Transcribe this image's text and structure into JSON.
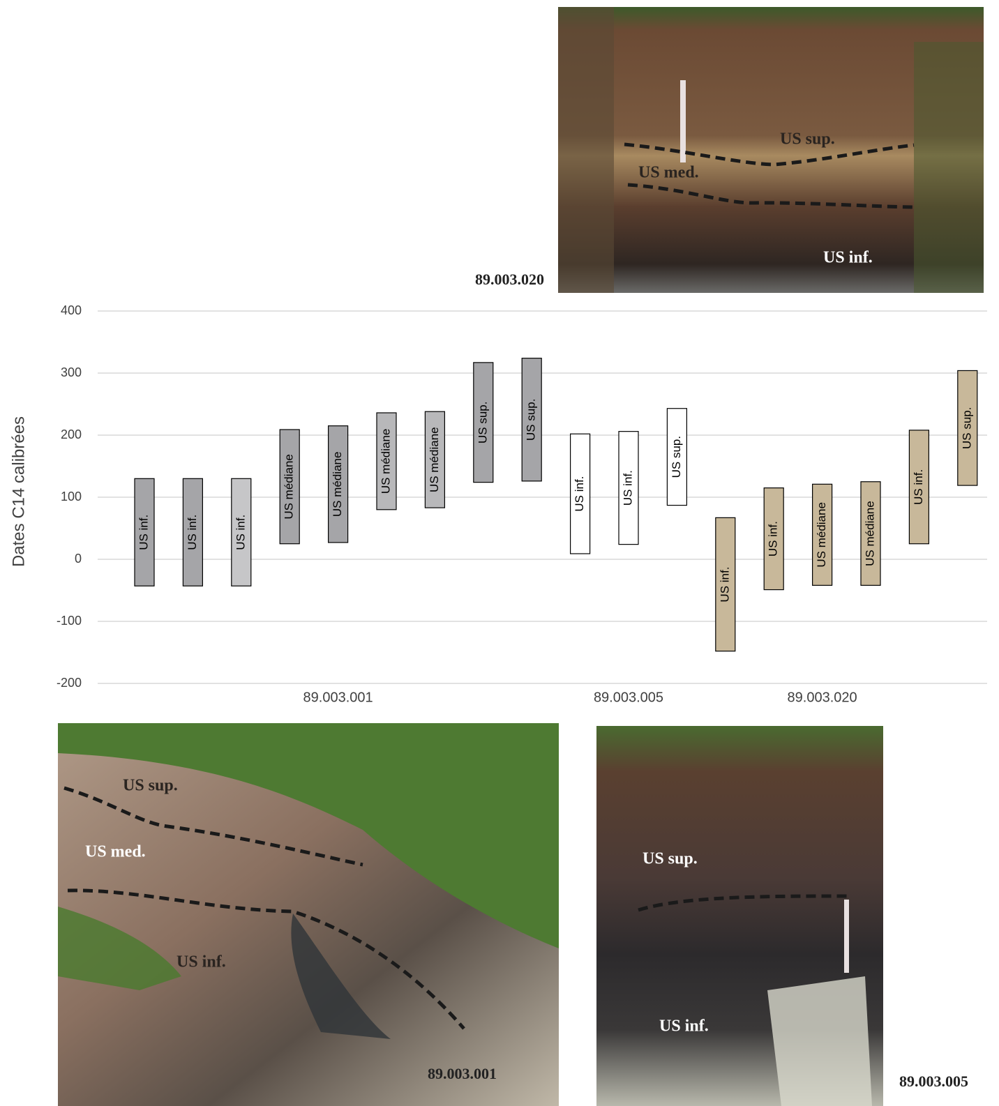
{
  "chart_data": {
    "type": "floating-bar",
    "y_label": "Dates C14 calibrées",
    "ylim": [
      -200,
      400
    ],
    "yticks": [
      -200,
      -100,
      0,
      100,
      200,
      300,
      400
    ],
    "grid": true,
    "categories": [
      null,
      null,
      null,
      null,
      "89.003.001",
      null,
      null,
      null,
      null,
      null,
      "89.003.005",
      null,
      null,
      null,
      "89.003.020",
      null,
      null,
      null
    ],
    "bars": [
      {
        "low": -43,
        "high": 130,
        "label": "US inf.",
        "color": "#a5a5a8"
      },
      {
        "low": -43,
        "high": 130,
        "label": "US inf.",
        "color": "#a5a5a8"
      },
      {
        "low": -43,
        "high": 130,
        "label": "US inf.",
        "color": "#c6c6c8"
      },
      {
        "low": 25,
        "high": 209,
        "label": "US médiane",
        "color": "#a5a5a8"
      },
      {
        "low": 27,
        "high": 215,
        "label": "US médiane",
        "color": "#a5a5a8"
      },
      {
        "low": 80,
        "high": 236,
        "label": "US médiane",
        "color": "#b8b8ba"
      },
      {
        "low": 83,
        "high": 238,
        "label": "US médiane",
        "color": "#b8b8ba"
      },
      {
        "low": 124,
        "high": 317,
        "label": "US sup.",
        "color": "#a5a5a8"
      },
      {
        "low": 126,
        "high": 324,
        "label": "US sup.",
        "color": "#a5a5a8"
      },
      {
        "low": 9,
        "high": 202,
        "label": "US inf.",
        "color": "#ffffff"
      },
      {
        "low": 24,
        "high": 206,
        "label": "US inf.",
        "color": "#ffffff"
      },
      {
        "low": 87,
        "high": 243,
        "label": "US sup.",
        "color": "#ffffff"
      },
      {
        "low": -148,
        "high": 67,
        "label": "US inf.",
        "color": "#c8b89a"
      },
      {
        "low": -49,
        "high": 115,
        "label": "US inf.",
        "color": "#c8b89a"
      },
      {
        "low": -42,
        "high": 121,
        "label": "US médiane",
        "color": "#c8b89a"
      },
      {
        "low": -42,
        "high": 125,
        "label": "US médiane",
        "color": "#c8b89a"
      },
      {
        "low": 25,
        "high": 208,
        "label": "US inf.",
        "color": "#c8b89a"
      },
      {
        "low": 119,
        "high": 304,
        "label": "US sup.",
        "color": "#c8b89a"
      }
    ]
  },
  "photos": [
    {
      "caption": "89.003.020",
      "labels": [
        "US sup.",
        "US med.",
        "US inf."
      ]
    },
    {
      "caption": "89.003.001",
      "labels": [
        "US sup.",
        "US med.",
        "US inf."
      ]
    },
    {
      "caption": "89.003.005",
      "labels": [
        "US sup.",
        "US inf."
      ]
    }
  ]
}
